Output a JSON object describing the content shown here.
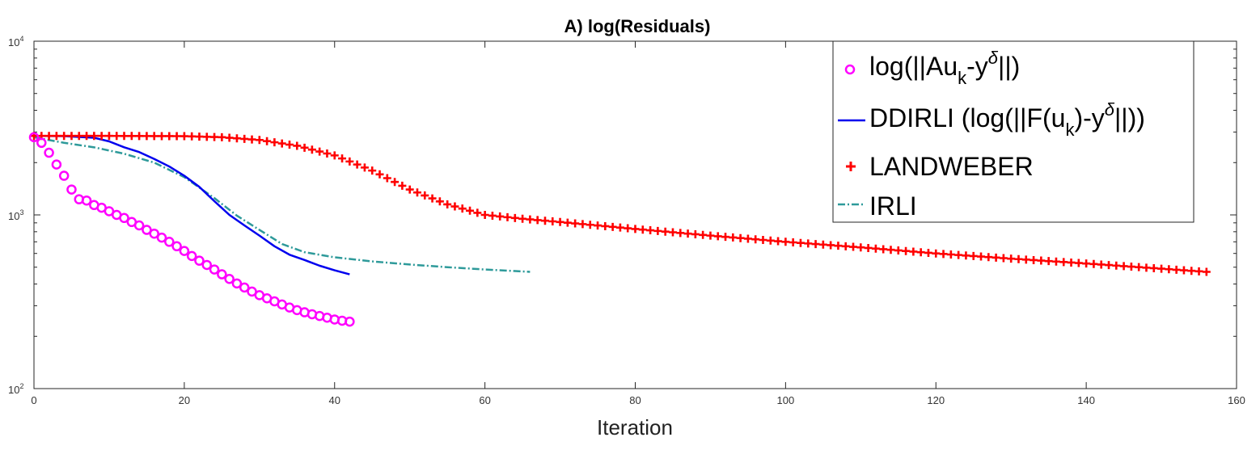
{
  "chart_data": {
    "type": "line",
    "title": "A) log(Residuals)",
    "xlabel": "Iteration",
    "ylabel": "",
    "xlim": [
      0,
      160
    ],
    "ylim": [
      100,
      10000
    ],
    "yscale": "log",
    "grid": false,
    "legend_position": "top-right",
    "xticks": [
      "0",
      "20",
      "40",
      "60",
      "80",
      "100",
      "120",
      "140",
      "160"
    ],
    "yticks": [
      {
        "base": "10",
        "exp": "2",
        "value": 100
      },
      {
        "base": "10",
        "exp": "3",
        "value": 1000
      },
      {
        "base": "10",
        "exp": "4",
        "value": 10000
      }
    ],
    "legend_labels": {
      "l0_a": "log(||Au",
      "l0_sub": "k",
      "l0_b": "-y",
      "l0_sup": "δ",
      "l0_c": "||)",
      "l1_a": "DDIRLI (log(||F(u",
      "l1_sub": "k",
      "l1_b": ")-y",
      "l1_sup": "δ",
      "l1_c": "||))",
      "l2": "LANDWEBER",
      "l3": "IRLI"
    },
    "series": [
      {
        "id": "au",
        "name": "log(||Au_k-y^δ||)",
        "color": "#ff00ff",
        "marker": "circle",
        "x": [
          0,
          1,
          2,
          3,
          4,
          5,
          6,
          7,
          8,
          9,
          10,
          11,
          12,
          13,
          14,
          15,
          16,
          17,
          18,
          19,
          20,
          21,
          22,
          23,
          24,
          25,
          26,
          27,
          28,
          29,
          30,
          31,
          32,
          33,
          34,
          35,
          36,
          37,
          38,
          39,
          40,
          41,
          42
        ],
        "y": [
          2800,
          2600,
          2280,
          1950,
          1680,
          1400,
          1230,
          1210,
          1140,
          1100,
          1050,
          1000,
          960,
          910,
          870,
          820,
          780,
          740,
          700,
          660,
          620,
          580,
          545,
          515,
          485,
          455,
          428,
          403,
          382,
          362,
          345,
          331,
          318,
          305,
          293,
          283,
          275,
          268,
          262,
          256,
          250,
          246,
          243
        ]
      },
      {
        "id": "dd",
        "name": "DDIRLI (log(||F(u_k)-y^δ||))",
        "color": "#0000ee",
        "marker": "none",
        "x": [
          0,
          4,
          8,
          10,
          12,
          14,
          16,
          18,
          20,
          22,
          24,
          26,
          28,
          30,
          32,
          34,
          36,
          38,
          40,
          42
        ],
        "y": [
          2850,
          2840,
          2780,
          2650,
          2450,
          2300,
          2100,
          1900,
          1680,
          1450,
          1200,
          1000,
          870,
          760,
          660,
          590,
          550,
          510,
          480,
          455
        ]
      },
      {
        "id": "lw",
        "name": "LANDWEBER",
        "color": "#ff0000",
        "marker": "plus",
        "x": [
          0,
          10,
          20,
          25,
          30,
          35,
          40,
          45,
          50,
          55,
          60,
          65,
          70,
          80,
          90,
          100,
          110,
          120,
          130,
          140,
          150,
          156
        ],
        "y": [
          2850,
          2850,
          2840,
          2800,
          2700,
          2500,
          2200,
          1800,
          1400,
          1150,
          1000,
          950,
          910,
          830,
          760,
          700,
          650,
          600,
          560,
          525,
          490,
          470
        ]
      },
      {
        "id": "irli",
        "name": "IRLI",
        "color": "#2e9a9a",
        "marker": "none",
        "x": [
          0,
          4,
          8,
          12,
          16,
          20,
          24,
          27,
          30,
          33,
          36,
          40,
          45,
          50,
          55,
          60,
          66
        ],
        "y": [
          2800,
          2600,
          2450,
          2250,
          2000,
          1650,
          1250,
          990,
          820,
          680,
          610,
          570,
          540,
          518,
          500,
          485,
          470
        ]
      }
    ]
  }
}
